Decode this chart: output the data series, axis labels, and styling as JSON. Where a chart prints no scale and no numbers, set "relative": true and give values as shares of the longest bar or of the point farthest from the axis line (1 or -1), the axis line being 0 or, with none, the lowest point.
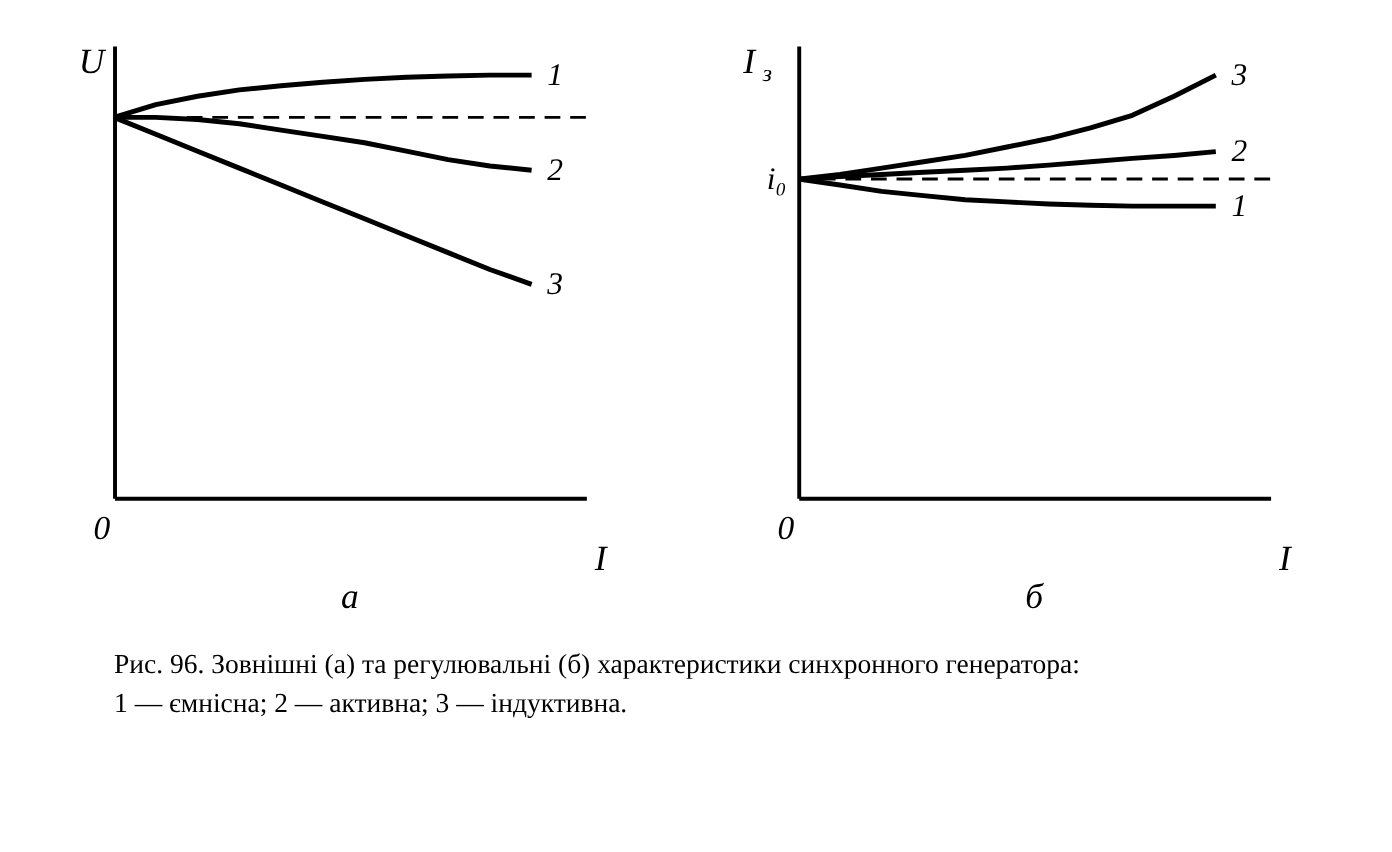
{
  "chart_data": [
    {
      "type": "line",
      "title": "а",
      "xlabel": "I",
      "ylabel": "U",
      "relative": true,
      "tick_labels": false,
      "line_style": "solid",
      "marker": "none",
      "categories": [
        null,
        null,
        null,
        null,
        null,
        null,
        null,
        null,
        null,
        null,
        null,
        null
      ],
      "series": [
        {
          "name": "1",
          "color": "#000000",
          "values": [
            0.9,
            0.93,
            0.95,
            0.965,
            0.975,
            0.983,
            0.99,
            0.995,
            0.998,
            1.0,
            1.0,
            null
          ]
        },
        {
          "name": "2",
          "color": "#000000",
          "values": [
            0.9,
            0.9,
            0.895,
            0.885,
            0.87,
            0.855,
            0.84,
            0.82,
            0.8,
            0.785,
            0.775,
            null
          ]
        },
        {
          "name": "3",
          "color": "#000000",
          "values": [
            0.9,
            0.86,
            0.82,
            0.78,
            0.74,
            0.7,
            0.66,
            0.62,
            0.58,
            0.54,
            0.505,
            null
          ]
        }
      ],
      "ref_lines": [
        {
          "axis": "y",
          "value": 0.9,
          "line_style": "dashed"
        }
      ],
      "annotations": [
        "0",
        "Рис. 96. Зовнішні (а) та регулювальні (б) характеристики синхронного генератора:",
        "1 — ємнісна; 2 — активна; 3 — індуктивна."
      ]
    },
    {
      "type": "line",
      "title": "б",
      "xlabel": "I",
      "ylabel": "I$_{з}$",
      "relative": true,
      "tick_labels": false,
      "line_style": "solid",
      "marker": "none",
      "categories": [
        null,
        null,
        null,
        null,
        null,
        null,
        null,
        null,
        null,
        null,
        null,
        null
      ],
      "series": [
        {
          "name": "1",
          "color": "#000000",
          "values": [
            0.754,
            0.74,
            0.725,
            0.715,
            0.705,
            0.7,
            0.695,
            0.692,
            0.69,
            0.69,
            0.69,
            null
          ]
        },
        {
          "name": "2",
          "color": "#000000",
          "values": [
            0.754,
            0.76,
            0.765,
            0.77,
            0.775,
            0.78,
            0.787,
            0.795,
            0.803,
            0.81,
            0.819,
            null
          ]
        },
        {
          "name": "3",
          "color": "#000000",
          "values": [
            0.754,
            0.765,
            0.78,
            0.795,
            0.81,
            0.83,
            0.85,
            0.875,
            0.905,
            0.95,
            1.0,
            null
          ]
        }
      ],
      "ref_lines": [
        {
          "axis": "y",
          "value": 0.754,
          "label": "i₀",
          "line_style": "dashed"
        }
      ],
      "annotations": [
        "0"
      ]
    }
  ]
}
